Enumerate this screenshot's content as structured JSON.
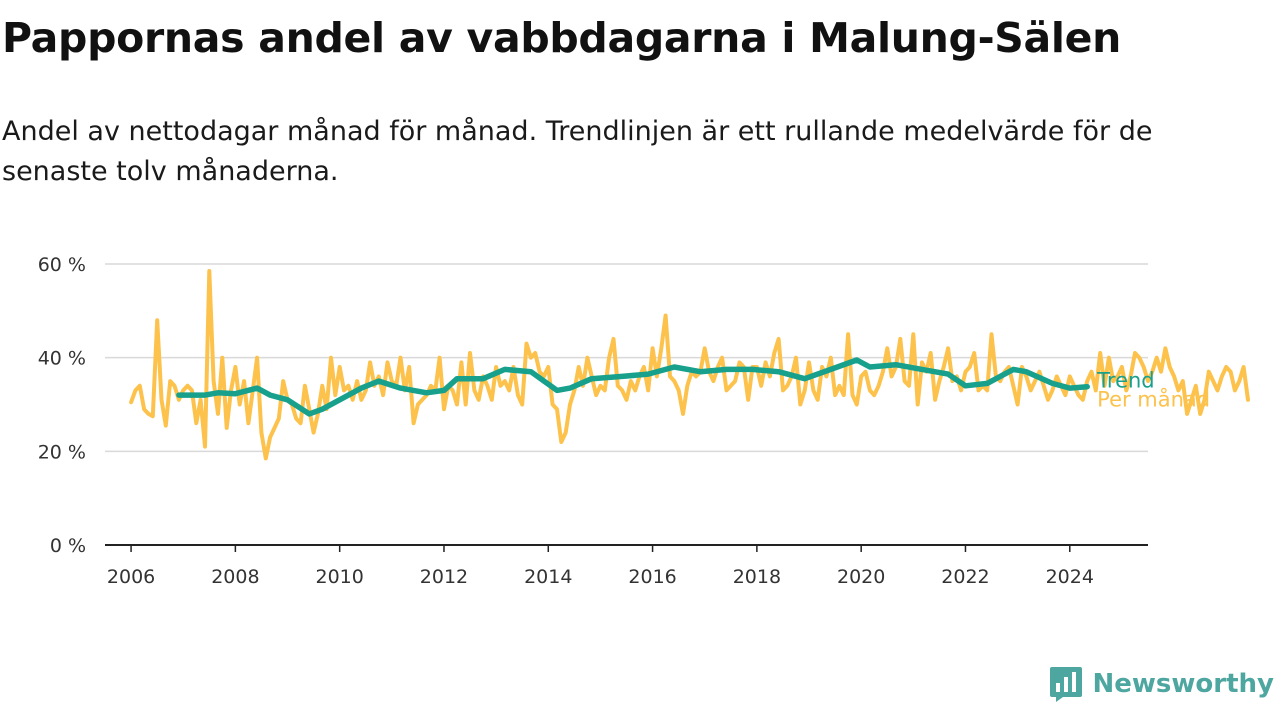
{
  "title": "Pappornas andel av vabbdagarna i Malung-Sälen",
  "subtitle": "Andel av nettodagar månad för månad. Trendlinjen är ett rullande medelvärde för de senaste tolv månaderna.",
  "brand": {
    "name": "Newsworthy",
    "icon": "bar-chart-logo-icon",
    "color": "#4ea6a0"
  },
  "chart_data": {
    "type": "line",
    "title": "Pappornas andel av vabbdagarna i Malung-Sälen",
    "subtitle": "Andel av nettodagar månad för månad. Trendlinjen är ett rullande medelvärde för de senaste tolv månaderna.",
    "xlabel": "",
    "ylabel": "",
    "xlim": [
      "2005-07",
      "2025-07"
    ],
    "ylim": [
      0,
      60
    ],
    "x_ticks": [
      "2006",
      "2008",
      "2010",
      "2012",
      "2014",
      "2016",
      "2018",
      "2020",
      "2022",
      "2024"
    ],
    "y_ticks": [
      "0 %",
      "20 %",
      "40 %",
      "60 %"
    ],
    "y_tick_values": [
      0,
      20,
      40,
      60
    ],
    "grid": true,
    "legend": "end-of-line labels, right",
    "series": [
      {
        "name": "Per månad",
        "color": "#fcc24c",
        "start": "2006-01",
        "values": [
          30.5,
          33,
          34,
          29,
          28,
          27.5,
          48,
          31,
          25.5,
          35,
          34,
          31,
          33,
          34,
          33,
          26,
          31,
          21,
          58.5,
          35,
          28,
          40,
          25,
          33,
          38,
          30,
          35,
          26,
          33,
          40,
          24,
          18.5,
          23,
          25,
          27,
          35,
          31,
          30,
          27,
          26,
          34,
          29,
          24,
          28,
          34,
          29,
          40,
          32,
          38,
          33,
          34,
          31,
          35,
          31,
          33,
          39,
          34,
          36,
          32,
          39,
          35,
          34,
          40,
          33,
          38,
          26,
          30,
          31,
          32,
          34,
          33,
          40,
          29,
          34,
          33,
          30,
          39,
          30,
          41,
          33,
          31,
          36,
          34,
          31,
          38,
          34,
          35,
          33,
          38,
          32,
          30,
          43,
          40,
          41,
          37,
          36,
          38,
          30,
          29,
          22,
          24,
          30,
          33,
          38,
          34,
          40,
          36,
          32,
          34,
          33,
          40,
          44,
          34,
          33,
          31,
          35,
          33,
          36,
          38,
          33,
          42,
          36,
          42,
          49,
          36,
          35,
          33,
          28,
          34,
          37,
          36,
          37,
          42,
          37,
          35,
          38,
          40,
          33,
          34,
          35,
          39,
          38,
          31,
          38,
          38,
          34,
          39,
          36,
          41,
          44,
          33,
          34,
          36,
          40,
          30,
          33,
          39,
          33,
          31,
          38,
          36,
          40,
          32,
          34,
          32,
          45,
          32,
          30,
          36,
          37,
          33,
          32,
          34,
          37,
          42,
          36,
          38,
          44,
          35,
          34,
          45,
          30,
          39,
          37,
          41,
          31,
          35,
          38,
          42,
          35,
          36,
          33,
          37,
          38,
          41,
          33,
          34,
          33,
          45,
          36,
          35,
          37,
          38,
          34,
          30,
          38,
          36,
          33,
          35,
          37,
          34,
          31,
          33,
          36,
          34,
          32,
          36,
          34,
          32,
          31,
          35,
          37,
          33,
          41,
          34,
          40,
          35,
          36,
          38,
          33,
          36,
          41,
          40,
          38,
          35,
          37,
          40,
          37,
          42,
          38,
          36,
          33,
          35,
          28,
          31,
          34,
          28,
          31,
          37,
          35,
          33,
          36,
          38,
          37,
          33,
          35,
          38,
          31
        ]
      },
      {
        "name": "Trend",
        "color": "#17a08c",
        "points": [
          [
            "2006-12",
            32
          ],
          [
            "2007-06",
            32
          ],
          [
            "2007-09",
            32.5
          ],
          [
            "2008-01",
            32.3
          ],
          [
            "2008-06",
            33.5
          ],
          [
            "2008-09",
            32
          ],
          [
            "2009-01",
            31
          ],
          [
            "2009-06",
            28
          ],
          [
            "2009-09",
            29
          ],
          [
            "2010-01",
            31
          ],
          [
            "2010-06",
            33.5
          ],
          [
            "2010-10",
            35
          ],
          [
            "2011-03",
            33.5
          ],
          [
            "2011-09",
            32.5
          ],
          [
            "2012-01",
            33
          ],
          [
            "2012-04",
            35.5
          ],
          [
            "2012-10",
            35.5
          ],
          [
            "2013-03",
            37.5
          ],
          [
            "2013-09",
            37
          ],
          [
            "2014-03",
            33
          ],
          [
            "2014-06",
            33.5
          ],
          [
            "2014-11",
            35.5
          ],
          [
            "2015-06",
            36
          ],
          [
            "2015-12",
            36.5
          ],
          [
            "2016-06",
            38
          ],
          [
            "2016-12",
            37
          ],
          [
            "2017-06",
            37.5
          ],
          [
            "2017-12",
            37.5
          ],
          [
            "2018-06",
            37
          ],
          [
            "2018-12",
            35.5
          ],
          [
            "2019-06",
            37.5
          ],
          [
            "2019-12",
            39.5
          ],
          [
            "2020-03",
            38
          ],
          [
            "2020-09",
            38.5
          ],
          [
            "2021-03",
            37.5
          ],
          [
            "2021-09",
            36.5
          ],
          [
            "2022-01",
            34
          ],
          [
            "2022-06",
            34.5
          ],
          [
            "2022-12",
            37.5
          ],
          [
            "2023-03",
            37
          ],
          [
            "2023-09",
            34.5
          ],
          [
            "2024-01",
            33.5
          ],
          [
            "2024-05",
            33.8
          ]
        ]
      }
    ]
  }
}
